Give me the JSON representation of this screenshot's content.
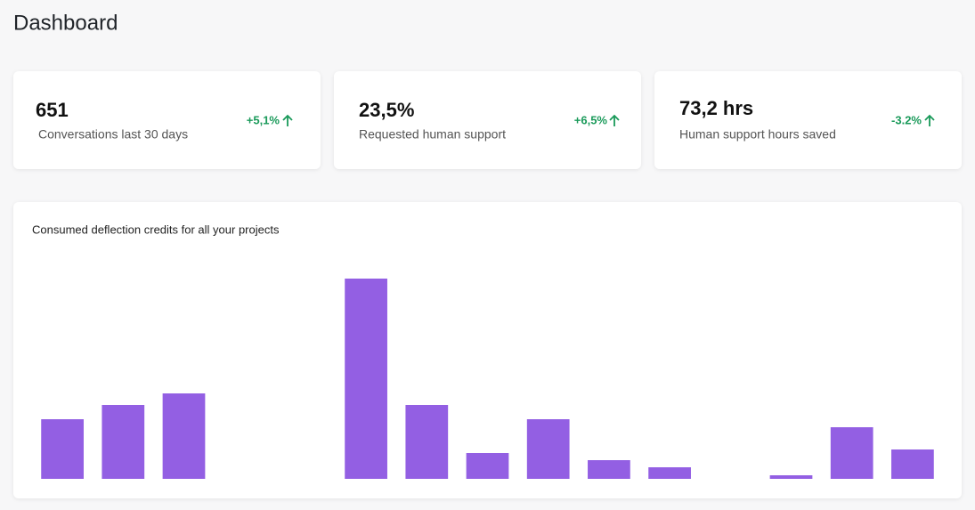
{
  "header": {
    "title": "Dashboard"
  },
  "stats": [
    {
      "value": "651",
      "label": "Conversations last 30 days",
      "change": "+5,1%"
    },
    {
      "value": "23,5%",
      "label": "Requested human support",
      "change": "+6,5%"
    },
    {
      "value": "73,2 hrs",
      "label": "Human support hours saved",
      "change": "-3.2%"
    }
  ],
  "chart_data": {
    "type": "bar",
    "title": "Consumed deflection credits for all your projects",
    "values": [
      67,
      83,
      96,
      0,
      0,
      225,
      83,
      29,
      67,
      21,
      13,
      0,
      4,
      58,
      33
    ],
    "color": "#935fe3",
    "ylim": [
      0,
      250
    ],
    "grid": false
  }
}
